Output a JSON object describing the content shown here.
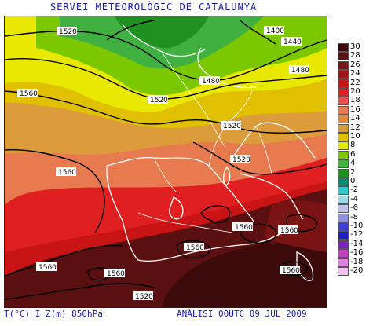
{
  "header": {
    "title": "SERVEI METEOROLÒGIC DE CATALUNYA"
  },
  "footer": {
    "variable": "T(°C) I Z(m) 850hPa",
    "analysis": "ANÀLISI 00UTC 09 JUL 2009"
  },
  "map": {
    "contour_labels": [
      "1520",
      "1400",
      "1440",
      "1480",
      "1560",
      "1520",
      "1520",
      "1560",
      "1480",
      "1520",
      "1560",
      "1560",
      "1560",
      "1560",
      "1560",
      "1560",
      "1520"
    ]
  },
  "legend": {
    "ticks": [
      "30",
      "28",
      "26",
      "24",
      "22",
      "20",
      "18",
      "16",
      "14",
      "12",
      "10",
      "8",
      "6",
      "4",
      "2",
      "0",
      "-2",
      "-4",
      "-6",
      "-8",
      "-10",
      "-12",
      "-14",
      "-16",
      "-18",
      "-20"
    ],
    "colors": [
      "#3c0a0a",
      "#5a1010",
      "#7a1414",
      "#a01414",
      "#c81414",
      "#e02020",
      "#e85050",
      "#e87a50",
      "#e08c3c",
      "#dc9c3c",
      "#e0c000",
      "#e8e800",
      "#7cc800",
      "#40b040",
      "#209020",
      "#008c70",
      "#30c8c8",
      "#a0d8e8",
      "#c0c0e8",
      "#9090e0",
      "#4040d0",
      "#2020c0",
      "#8020c0",
      "#c040c0",
      "#e080e0",
      "#f0c0f0"
    ]
  }
}
